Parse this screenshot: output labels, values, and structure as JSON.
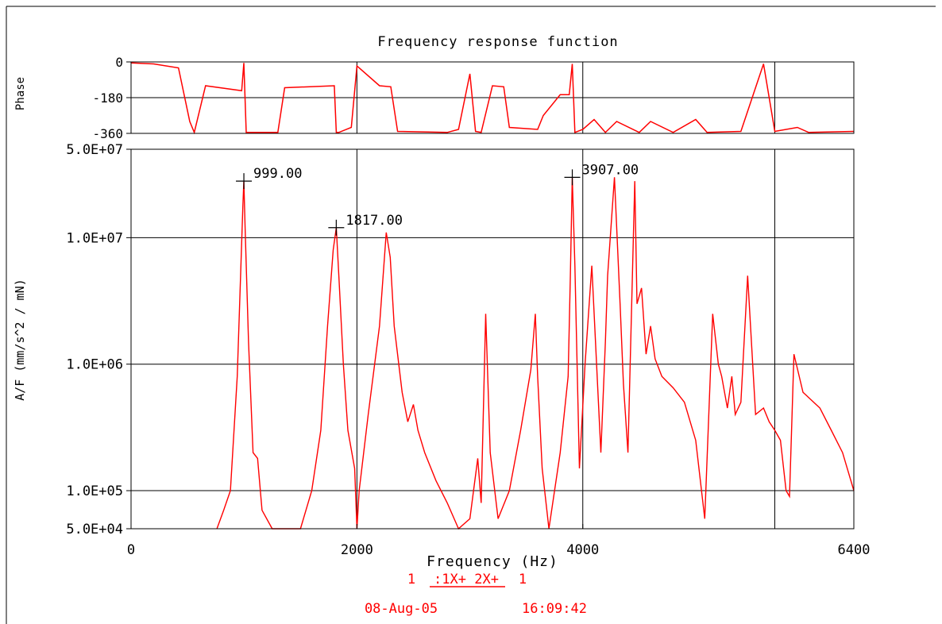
{
  "chart_data": [
    {
      "type": "line",
      "title": "Frequency response function",
      "ylabel": "Phase",
      "xlim": [
        0,
        6400
      ],
      "ylim": [
        -360,
        0
      ],
      "yticks": [
        "0",
        "-180",
        "-360"
      ],
      "grid": true,
      "series": [
        {
          "color": "#ff0000",
          "x": [
            0,
            200,
            420,
            520,
            560,
            660,
            980,
            999,
            1020,
            1300,
            1360,
            1800,
            1817,
            1840,
            1950,
            2000,
            2200,
            2300,
            2360,
            2800,
            2900,
            3000,
            3050,
            3100,
            3200,
            3300,
            3350,
            3600,
            3650,
            3800,
            3880,
            3907,
            3930,
            4000,
            4100,
            4200,
            4300,
            4500,
            4600,
            4800,
            5000,
            5100,
            5400,
            5600,
            5700,
            5900,
            6000,
            6400
          ],
          "y": [
            -5,
            -10,
            -30,
            -300,
            -355,
            -120,
            -145,
            -5,
            -355,
            -355,
            -130,
            -120,
            -355,
            -355,
            -330,
            -20,
            -120,
            -125,
            -350,
            -355,
            -340,
            -60,
            -350,
            -355,
            -120,
            -125,
            -330,
            -340,
            -270,
            -165,
            -165,
            -10,
            -355,
            -340,
            -290,
            -355,
            -300,
            -355,
            -300,
            -355,
            -290,
            -355,
            -350,
            -10,
            -350,
            -330,
            -355,
            -350
          ]
        }
      ]
    },
    {
      "type": "line",
      "xlabel": "Frequency (Hz)",
      "ylabel": "A/F (mm/s^2 / mN)",
      "xlim": [
        0,
        6400
      ],
      "ylim": [
        50000,
        50000000
      ],
      "yscale": "log",
      "xticks": [
        "0",
        "2000",
        "4000",
        "6400"
      ],
      "yticks": [
        "5.0E+07",
        "1.0E+07",
        "1.0E+06",
        "1.0E+05",
        "5.0E+04"
      ],
      "grid": true,
      "series": [
        {
          "color": "#ff0000",
          "x": [
            760,
            820,
            880,
            940,
            970,
            990,
            999,
            1010,
            1040,
            1080,
            1120,
            1160,
            1250,
            1500,
            1600,
            1680,
            1740,
            1790,
            1817,
            1840,
            1880,
            1920,
            1980,
            2000,
            2020,
            2100,
            2200,
            2260,
            2295,
            2330,
            2400,
            2450,
            2500,
            2540,
            2600,
            2700,
            2800,
            2900,
            3000,
            3070,
            3100,
            3140,
            3180,
            3250,
            3350,
            3450,
            3540,
            3580,
            3600,
            3640,
            3700,
            3800,
            3870,
            3890,
            3907,
            3930,
            3970,
            4020,
            4080,
            4160,
            4200,
            4220,
            4280,
            4330,
            4360,
            4400,
            4460,
            4480,
            4520,
            4560,
            4600,
            4640,
            4700,
            4800,
            4900,
            5000,
            5080,
            5150,
            5200,
            5230,
            5280,
            5320,
            5350,
            5400,
            5460,
            5530,
            5600,
            5650,
            5700,
            5750,
            5800,
            5830,
            5870,
            5950,
            6100,
            6200,
            6300,
            6400
          ],
          "y": [
            50000,
            70000,
            100000,
            800000,
            5000000,
            18000000,
            28000000,
            12000000,
            1500000,
            200000,
            180000,
            70000,
            50000,
            50000,
            100000,
            300000,
            2000000,
            8000000,
            12000000,
            5000000,
            1000000,
            300000,
            150000,
            50000,
            100000,
            400000,
            2000000,
            11000000,
            7000000,
            2000000,
            600000,
            350000,
            480000,
            300000,
            200000,
            120000,
            80000,
            50000,
            60000,
            180000,
            80000,
            2500000,
            200000,
            60000,
            100000,
            300000,
            900000,
            2500000,
            800000,
            150000,
            50000,
            200000,
            800000,
            5000000,
            30000000,
            6000000,
            150000,
            1000000,
            6000000,
            200000,
            1500000,
            5000000,
            30000000,
            3000000,
            700000,
            200000,
            28000000,
            3000000,
            4000000,
            1200000,
            2000000,
            1100000,
            800000,
            650000,
            500000,
            250000,
            60000,
            2500000,
            1000000,
            800000,
            450000,
            800000,
            400000,
            500000,
            5000000,
            400000,
            450000,
            350000,
            300000,
            250000,
            100000,
            90000,
            1200000,
            600000,
            450000,
            300000,
            200000,
            100000
          ]
        }
      ]
    }
  ],
  "annotations": [
    {
      "text": "999.00",
      "x": 999,
      "y": 28000000
    },
    {
      "text": "1817.00",
      "x": 1817,
      "y": 12000000
    },
    {
      "text": "3907.00",
      "x": 3907,
      "y": 30000000
    }
  ],
  "footer": {
    "trace_prefix": "1",
    "trace_main": ":1X+ 2X+",
    "trace_suffix": "1",
    "date": "08-Aug-05",
    "time": "16:09:42"
  },
  "colors": {
    "trace": "#ff0000",
    "axes": "#000000",
    "footer": "#ff0000"
  }
}
